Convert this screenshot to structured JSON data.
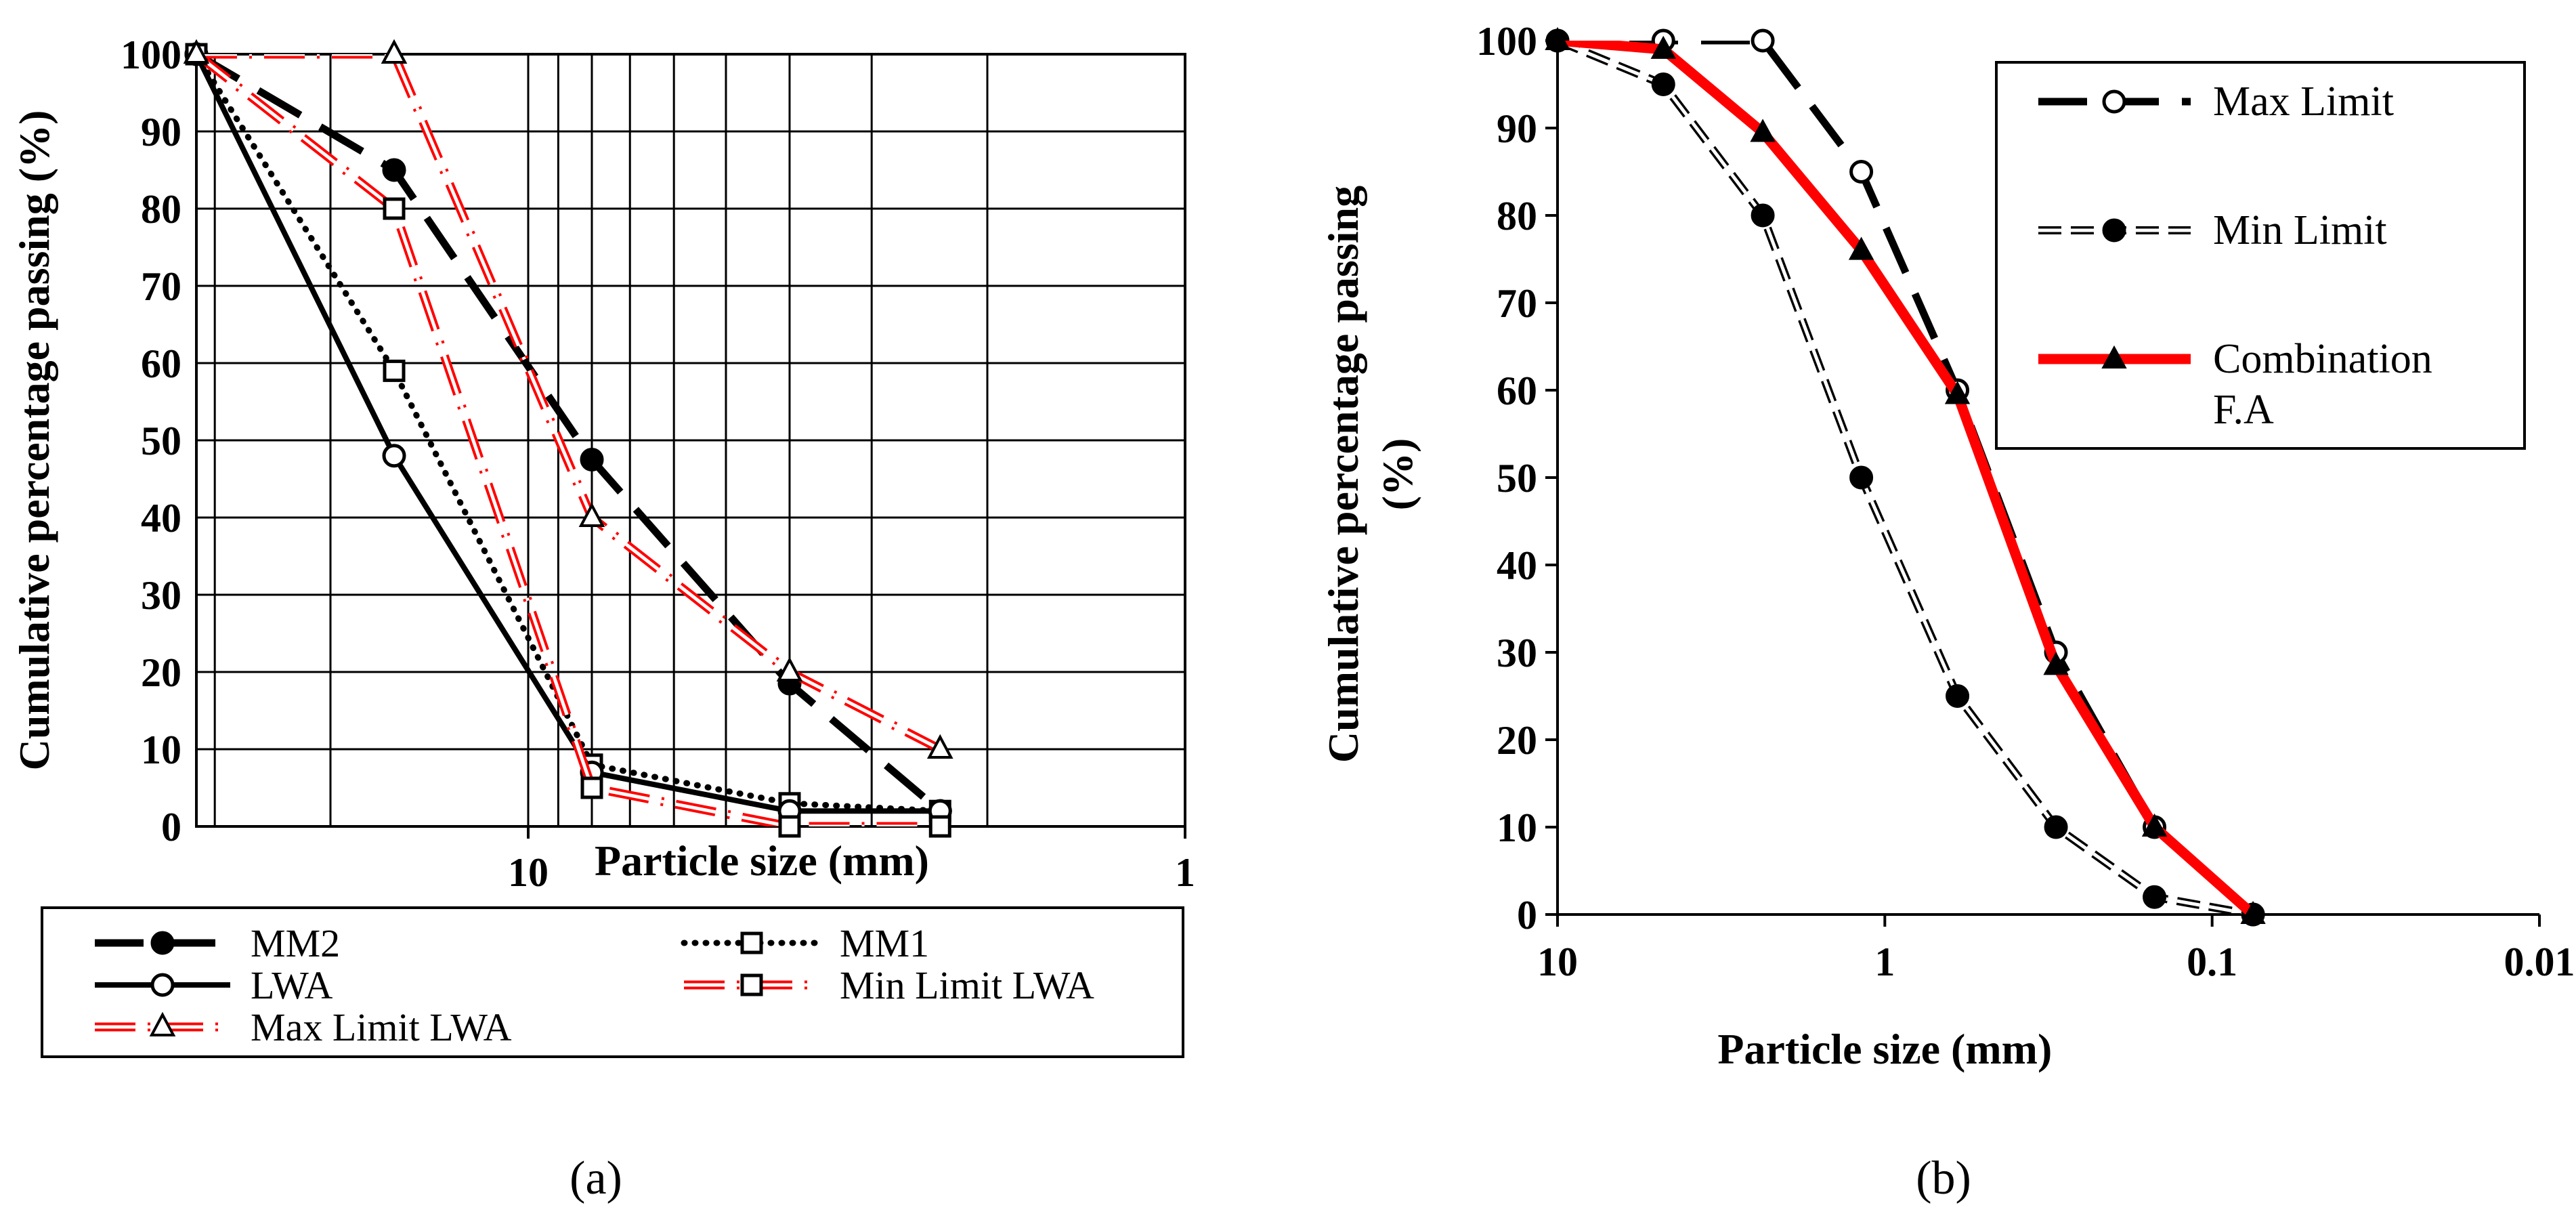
{
  "charts": [
    {
      "panel_label": "(a)",
      "chart_data": {
        "type": "line",
        "x_scale": "log",
        "x_reversed": true,
        "xlim": [
          32,
          1
        ],
        "ylim": [
          0,
          100
        ],
        "xlabel": "Particle size (mm)",
        "ylabel": "Cumulative percentage passing (%)",
        "y_ticks": [
          0,
          10,
          20,
          30,
          40,
          50,
          60,
          70,
          80,
          90,
          100
        ],
        "x_tick_labels": [
          {
            "value": 10,
            "label": "10"
          },
          {
            "value": 1,
            "label": "1"
          }
        ],
        "grid": true,
        "legend_position": "bottom",
        "series": [
          {
            "name": "MM2",
            "color": "#000000",
            "style": "dash-long",
            "marker": "filled-circle",
            "x": [
              32,
              16,
              8,
              4,
              2.36
            ],
            "y": [
              100,
              85,
              47.5,
              18.5,
              2
            ]
          },
          {
            "name": "MM1",
            "color": "#000000",
            "style": "dot",
            "marker": "open-square",
            "x": [
              32,
              16,
              8,
              4,
              2.36
            ],
            "y": [
              100,
              59,
              8,
              3,
              2
            ]
          },
          {
            "name": "LWA",
            "color": "#000000",
            "style": "solid",
            "marker": "open-circle",
            "x": [
              32,
              16,
              8,
              4,
              2.36
            ],
            "y": [
              100,
              48,
              7,
              2,
              2
            ]
          },
          {
            "name": "Min Limit LWA",
            "color": "#ff0000",
            "style": "double-dashdot",
            "marker": "open-square",
            "x": [
              32,
              16,
              8,
              4,
              2.36
            ],
            "y": [
              100,
              80,
              5,
              0,
              0
            ]
          },
          {
            "name": "Max Limit LWA",
            "color": "#ff0000",
            "style": "double-dashdot",
            "marker": "open-triangle",
            "x": [
              32,
              16,
              8,
              4,
              2.36
            ],
            "y": [
              100,
              100,
              40,
              20,
              10
            ]
          }
        ]
      }
    },
    {
      "panel_label": "(b)",
      "chart_data": {
        "type": "line",
        "x_scale": "log",
        "x_reversed": true,
        "xlim": [
          10,
          0.01
        ],
        "ylim": [
          0,
          100
        ],
        "xlabel": "Particle size (mm)",
        "ylabel_lines": [
          "Cumulative percentage passing",
          "(%)"
        ],
        "y_ticks": [
          0,
          10,
          20,
          30,
          40,
          50,
          60,
          70,
          80,
          90,
          100
        ],
        "x_tick_labels": [
          {
            "value": 10,
            "label": "10"
          },
          {
            "value": 1,
            "label": "1"
          },
          {
            "value": 0.1,
            "label": "0.1"
          },
          {
            "value": 0.01,
            "label": "0.01"
          }
        ],
        "grid": false,
        "legend_position": "top-right",
        "series": [
          {
            "name": "Max Limit",
            "color": "#000000",
            "style": "dash-long",
            "marker": "open-circle",
            "x": [
              10,
              4.75,
              2.36,
              1.18,
              0.6,
              0.3,
              0.15,
              0.075
            ],
            "y": [
              100,
              100,
              100,
              85,
              60,
              30,
              10,
              0
            ]
          },
          {
            "name": "Min Limit",
            "color": "#000000",
            "style": "double-dash",
            "marker": "filled-circle",
            "x": [
              10,
              4.75,
              2.36,
              1.18,
              0.6,
              0.3,
              0.15,
              0.075
            ],
            "y": [
              100,
              95,
              80,
              50,
              25,
              10,
              2,
              0
            ]
          },
          {
            "name": "Combination F.A",
            "legend_lines": [
              "Combination",
              "F.A"
            ],
            "color": "#ff0000",
            "style": "solid-thick",
            "marker": "filled-triangle",
            "x": [
              10,
              4.75,
              2.36,
              1.18,
              0.6,
              0.3,
              0.15,
              0.075
            ],
            "y": [
              100,
              99,
              89.5,
              76,
              59.5,
              28.5,
              10,
              0
            ]
          }
        ]
      }
    }
  ]
}
